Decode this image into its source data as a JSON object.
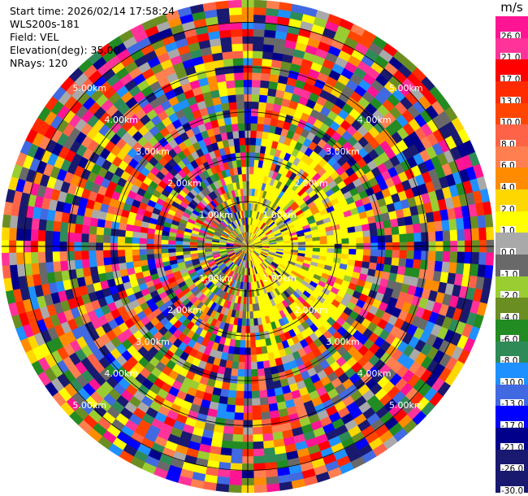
{
  "info": {
    "start_time": "Start time: 2026/02/14 17:58:24",
    "instrument": "WLS200s-181",
    "field": "Field: VEL",
    "elevation": "Elevation(deg): 35.00",
    "nrays": "NRays: 120"
  },
  "colorbar": {
    "unit": "m/s",
    "ticks": [
      "26.0",
      "21.0",
      "17.0",
      "13.0",
      "10.0",
      "8.0",
      "6.0",
      "4.0",
      "2.0",
      "1.0",
      "0.0",
      "-1.0",
      "-2.0",
      "-4.0",
      "-6.0",
      "-8.0",
      "-10.0",
      "-13.0",
      "-17.0",
      "-21.0",
      "-26.0",
      "-30.0"
    ],
    "colors": [
      "#ff1493",
      "#ff3399",
      "#ff0000",
      "#ff2a00",
      "#ff4500",
      "#ff6347",
      "#ff7f50",
      "#ff8c00",
      "#ffd700",
      "#ffff00",
      "#a9a9a9",
      "#696969",
      "#9acd32",
      "#6b8e23",
      "#228b22",
      "#2e8b57",
      "#1e90ff",
      "#4169e1",
      "#0000ff",
      "#00008b",
      "#191970",
      "#191970"
    ]
  },
  "chart_data": {
    "type": "heatmap",
    "projection": "polar (PPI)",
    "field": "VEL",
    "units": "m/s",
    "color_range": [
      -30.0,
      26.0
    ],
    "n_rays": 120,
    "ring_labels": [
      "1.00km",
      "2.00km",
      "3.00km",
      "4.00km",
      "5.00km"
    ],
    "ring_km": [
      1,
      2,
      3,
      4,
      5
    ],
    "max_range_km": 5.5,
    "pattern": "mixed-sign velocities; near-range positive (yellow, ~1-2 m/s) region east of center, far-range noisy values spanning full color scale"
  }
}
